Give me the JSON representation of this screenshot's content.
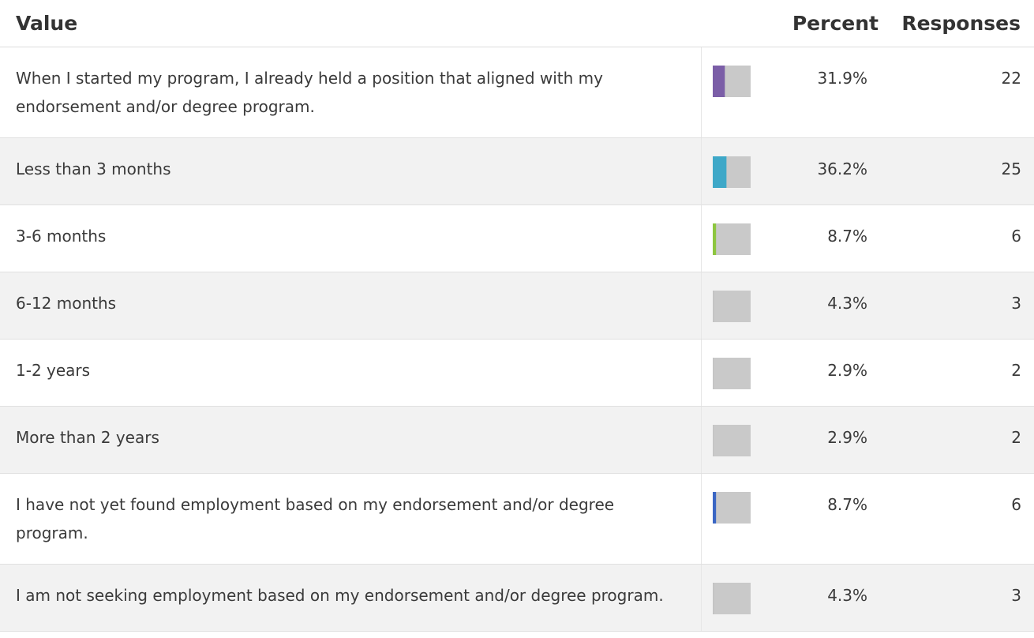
{
  "header": {
    "value": "Value",
    "percent": "Percent",
    "responses": "Responses"
  },
  "table": {
    "rows": [
      {
        "label": "When I started my program, I already held a position that aligned with my endorsement and/or degree program.",
        "percent": 31.9,
        "percent_label": "31.9%",
        "responses": 22,
        "color": "#7b5ea7"
      },
      {
        "label": "Less than 3 months",
        "percent": 36.2,
        "percent_label": "36.2%",
        "responses": 25,
        "color": "#3ea8c8"
      },
      {
        "label": "3-6 months",
        "percent": 8.7,
        "percent_label": "8.7%",
        "responses": 6,
        "color": "#8dc63f"
      },
      {
        "label": "6-12 months",
        "percent": 4.3,
        "percent_label": "4.3%",
        "responses": 3,
        "color": "#c4c4c4"
      },
      {
        "label": "1-2 years",
        "percent": 2.9,
        "percent_label": "2.9%",
        "responses": 2,
        "color": "#c4c4c4"
      },
      {
        "label": "More than 2 years",
        "percent": 2.9,
        "percent_label": "2.9%",
        "responses": 2,
        "color": "#c4c4c4"
      },
      {
        "label": "I have not yet found employment based on my endorsement and/or degree program.",
        "percent": 8.7,
        "percent_label": "8.7%",
        "responses": 6,
        "color": "#3a66c4"
      },
      {
        "label": "I am not seeking employment based on my endorsement and/or degree program.",
        "percent": 4.3,
        "percent_label": "4.3%",
        "responses": 3,
        "color": "#c4c4c4"
      }
    ]
  }
}
